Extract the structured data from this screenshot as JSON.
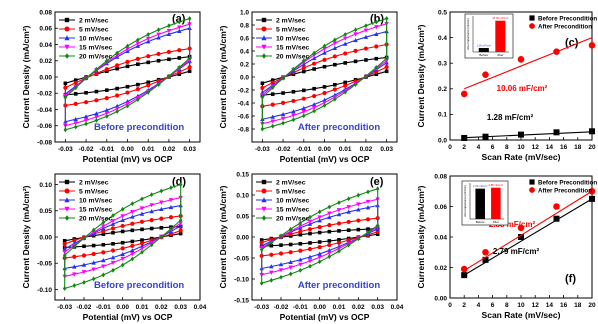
{
  "chart_data": [
    {
      "id": "a",
      "panel_label": "(a)",
      "type": "line",
      "note": "Before precondition",
      "xlabel": "Potential (mV) vs OCP",
      "ylabel": "Current Density (mA/cm²)",
      "xlim": [
        -0.035,
        0.035
      ],
      "ylim": [
        -0.08,
        0.08
      ],
      "xticks": [
        "-0.03",
        "-0.02",
        "-0.01",
        "0.00",
        "0.01",
        "0.02",
        "0.03"
      ],
      "yticks": [
        "-0.08",
        "-0.06",
        "-0.04",
        "-0.02",
        "0.00",
        "0.02",
        "0.04",
        "0.06",
        "0.08"
      ],
      "series": [
        {
          "name": "2 mV/sec",
          "color": "#000000",
          "marker": "square",
          "ymax": 0.025,
          "ymin": -0.022,
          "w": 0.013
        },
        {
          "name": "5 mV/sec",
          "color": "#ff0000",
          "marker": "circle",
          "ymax": 0.035,
          "ymin": -0.035,
          "w": 0.022
        },
        {
          "name": "10 mV/sec",
          "color": "#2233ee",
          "marker": "triangle",
          "ymax": 0.06,
          "ymin": -0.055,
          "w": 0.035
        },
        {
          "name": "15 mV/sec",
          "color": "#ff00ff",
          "marker": "tri-down",
          "ymax": 0.065,
          "ymin": -0.06,
          "w": 0.038
        },
        {
          "name": "20 mV/sec",
          "color": "#118811",
          "marker": "diamond",
          "ymax": 0.072,
          "ymin": -0.065,
          "w": 0.042
        }
      ]
    },
    {
      "id": "b",
      "panel_label": "(b)",
      "type": "line",
      "note": "After precondition",
      "xlabel": "Potential (mV) vs OCP",
      "ylabel": "Current Density (mA/cm²)",
      "xlim": [
        -0.035,
        0.035
      ],
      "ylim": [
        -1.0,
        1.0
      ],
      "xticks": [
        "-0.03",
        "-0.02",
        "-0.01",
        "0.00",
        "0.01",
        "0.02",
        "0.03"
      ],
      "yticks": [
        "-0.8",
        "-0.6",
        "-0.4",
        "-0.2",
        "0.0",
        "0.2",
        "0.4",
        "0.6",
        "0.8",
        "1.0"
      ],
      "series": [
        {
          "name": "2 mV/sec",
          "color": "#000000",
          "marker": "square",
          "ymax": 0.3,
          "ymin": -0.28,
          "w": 0.16
        },
        {
          "name": "5 mV/sec",
          "color": "#ff0000",
          "marker": "circle",
          "ymax": 0.5,
          "ymin": -0.45,
          "w": 0.28
        },
        {
          "name": "10 mV/sec",
          "color": "#2233ee",
          "marker": "triangle",
          "ymax": 0.7,
          "ymin": -0.65,
          "w": 0.4
        },
        {
          "name": "15 mV/sec",
          "color": "#ff00ff",
          "marker": "tri-down",
          "ymax": 0.82,
          "ymin": -0.72,
          "w": 0.46
        },
        {
          "name": "20 mV/sec",
          "color": "#118811",
          "marker": "diamond",
          "ymax": 0.9,
          "ymin": -0.8,
          "w": 0.52
        }
      ]
    },
    {
      "id": "c",
      "panel_label": "(c)",
      "type": "scatter",
      "xlabel": "Scan Rate (mV/sec)",
      "ylabel": "Current Density (mA/cm²)",
      "xlim": [
        0,
        20
      ],
      "ylim": [
        0.0,
        0.5
      ],
      "xticks": [
        "0",
        "2",
        "4",
        "6",
        "8",
        "10",
        "12",
        "14",
        "16",
        "18",
        "20"
      ],
      "yticks": [
        "0.0",
        "0.1",
        "0.2",
        "0.3",
        "0.4",
        "0.5"
      ],
      "series": [
        {
          "name": "Before Precondition",
          "color": "#000000",
          "marker": "square",
          "x": [
            2,
            5,
            10,
            15,
            20
          ],
          "y": [
            0.008,
            0.013,
            0.021,
            0.03,
            0.034
          ],
          "fit": [
            [
              2,
              0.009
            ],
            [
              20,
              0.032
            ]
          ],
          "annotation": "1.28 mF/cm²"
        },
        {
          "name": "After Precondition",
          "color": "#ff0000",
          "marker": "circle",
          "x": [
            2,
            5,
            10,
            15,
            20
          ],
          "y": [
            0.18,
            0.255,
            0.315,
            0.345,
            0.37
          ],
          "fit": [
            [
              2,
              0.2
            ],
            [
              20,
              0.4
            ]
          ],
          "annotation": "10.06 mF/cm²"
        }
      ],
      "inset": {
        "ylabel": "Area Capacitance (mF/cm²)",
        "categories": [
          "Before",
          "After"
        ],
        "values": [
          1.28,
          10.06
        ],
        "labels": [
          "1.28 mF/cm²",
          "10.06 mF/cm²"
        ]
      }
    },
    {
      "id": "d",
      "panel_label": "(d)",
      "type": "line",
      "note": "Before precondition",
      "xlabel": "Potential (mV) vs OCP",
      "ylabel": "Current Density (mA/cm²)",
      "xlim": [
        -0.035,
        0.04
      ],
      "ylim": [
        -0.12,
        0.12
      ],
      "xticks": [
        "-0.03",
        "-0.02",
        "-0.01",
        "0.00",
        "0.01",
        "0.02",
        "0.03",
        "0.04"
      ],
      "yticks": [
        "-0.10",
        "-0.05",
        "0.00",
        "0.05",
        "0.10"
      ],
      "series": [
        {
          "name": "2 mV/sec",
          "color": "#000000",
          "marker": "square",
          "ymax": 0.02,
          "ymin": -0.02,
          "w": 0.012
        },
        {
          "name": "5 mV/sec",
          "color": "#ff0000",
          "marker": "circle",
          "ymax": 0.04,
          "ymin": -0.04,
          "w": 0.022
        },
        {
          "name": "10 mV/sec",
          "color": "#2233ee",
          "marker": "triangle",
          "ymax": 0.06,
          "ymin": -0.06,
          "w": 0.038
        },
        {
          "name": "15 mV/sec",
          "color": "#ff00ff",
          "marker": "tri-down",
          "ymax": 0.075,
          "ymin": -0.075,
          "w": 0.048
        },
        {
          "name": "20 mV/sec",
          "color": "#118811",
          "marker": "diamond",
          "ymax": 0.1,
          "ymin": -0.098,
          "w": 0.058
        }
      ]
    },
    {
      "id": "e",
      "panel_label": "(e)",
      "type": "line",
      "note": "After precondition",
      "xlabel": "Potential (mV) vs OCP",
      "ylabel": "Current Density (mA/cm²)",
      "xlim": [
        -0.035,
        0.04
      ],
      "ylim": [
        -0.15,
        0.15
      ],
      "xticks": [
        "-0.03",
        "-0.02",
        "-0.01",
        "0.00",
        "0.01",
        "0.02",
        "0.03",
        "0.04"
      ],
      "yticks": [
        "-0.15",
        "-0.10",
        "-0.05",
        "0.00",
        "0.05",
        "0.10",
        "0.15"
      ],
      "series": [
        {
          "name": "2 mV/sec",
          "color": "#000000",
          "marker": "square",
          "ymax": 0.02,
          "ymin": -0.022,
          "w": 0.012
        },
        {
          "name": "5 mV/sec",
          "color": "#ff0000",
          "marker": "circle",
          "ymax": 0.045,
          "ymin": -0.045,
          "w": 0.022
        },
        {
          "name": "10 mV/sec",
          "color": "#2233ee",
          "marker": "triangle",
          "ymax": 0.075,
          "ymin": -0.075,
          "w": 0.035
        },
        {
          "name": "15 mV/sec",
          "color": "#ff00ff",
          "marker": "tri-down",
          "ymax": 0.09,
          "ymin": -0.09,
          "w": 0.043
        },
        {
          "name": "20 mV/sec",
          "color": "#118811",
          "marker": "diamond",
          "ymax": 0.115,
          "ymin": -0.11,
          "w": 0.05
        }
      ]
    },
    {
      "id": "f",
      "panel_label": "(f)",
      "type": "scatter",
      "xlabel": "Scan Rate (mV/sec)",
      "ylabel": "Current Density (mA/cm²)",
      "xlim": [
        0,
        20
      ],
      "ylim": [
        0.0,
        0.08
      ],
      "xticks": [
        "0",
        "2",
        "4",
        "6",
        "8",
        "10",
        "12",
        "14",
        "16",
        "18",
        "20"
      ],
      "yticks": [
        "0.00",
        "0.02",
        "0.04",
        "0.06",
        "0.08"
      ],
      "series": [
        {
          "name": "Before Precondition",
          "color": "#000000",
          "marker": "square",
          "x": [
            2,
            5,
            10,
            15,
            20
          ],
          "y": [
            0.015,
            0.025,
            0.04,
            0.052,
            0.065
          ],
          "fit": [
            [
              2,
              0.015
            ],
            [
              20,
              0.065
            ]
          ],
          "annotation": "2.79 mF/cm²"
        },
        {
          "name": "After Precondition",
          "color": "#ff0000",
          "marker": "circle",
          "x": [
            2,
            5,
            10,
            15,
            20
          ],
          "y": [
            0.019,
            0.03,
            0.046,
            0.06,
            0.07
          ],
          "fit": [
            [
              2,
              0.018
            ],
            [
              20,
              0.07
            ]
          ],
          "annotation": "2.88 mF/cm²"
        }
      ],
      "inset": {
        "ylabel": "Area Capacitance (mF/cm²)",
        "categories": [
          "Before",
          "After"
        ],
        "values": [
          2.79,
          2.88
        ],
        "labels": [
          "2.79 mF/cm²",
          "2.88 mF/cm²"
        ]
      }
    }
  ]
}
